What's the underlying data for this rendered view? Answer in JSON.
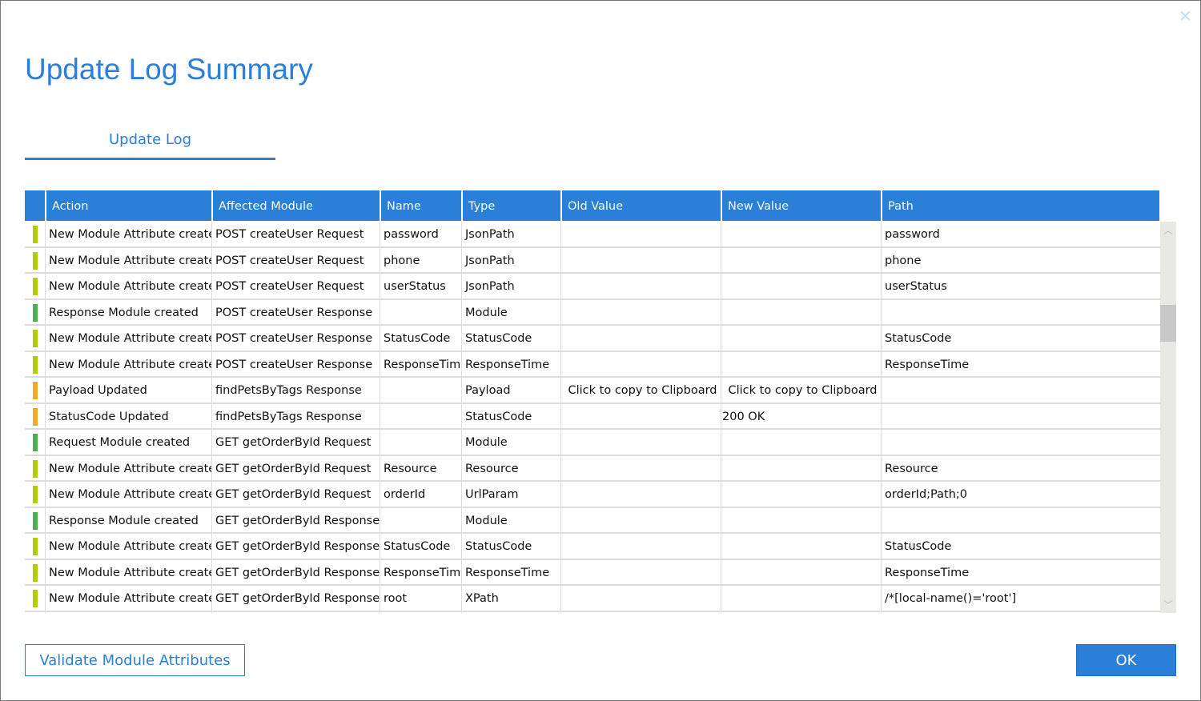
{
  "title": "Update Log Summary",
  "tab": "Update Log",
  "close_icon": "close-icon",
  "colors": {
    "accent": "#2a7fd9",
    "attribute": "#b5cc00",
    "module": "#4caf50",
    "updated": "#f5a623"
  },
  "columns": [
    "Action",
    "Affected Module",
    "Name",
    "Type",
    "Old Value",
    "New Value",
    "Path"
  ],
  "rows": [
    {
      "status": "attribute",
      "action": "New Module Attribute created",
      "module": "POST createUser Request",
      "name": "password",
      "type": "JsonPath",
      "old": "",
      "new": "",
      "path": "password"
    },
    {
      "status": "attribute",
      "action": "New Module Attribute created",
      "module": "POST createUser Request",
      "name": "phone",
      "type": "JsonPath",
      "old": "",
      "new": "",
      "path": "phone"
    },
    {
      "status": "attribute",
      "action": "New Module Attribute created",
      "module": "POST createUser Request",
      "name": "userStatus",
      "type": "JsonPath",
      "old": "",
      "new": "",
      "path": "userStatus"
    },
    {
      "status": "module",
      "action": "Response Module created",
      "module": "POST createUser Response",
      "name": "",
      "type": "Module",
      "old": "",
      "new": "",
      "path": ""
    },
    {
      "status": "attribute",
      "action": "New Module Attribute created",
      "module": "POST createUser Response",
      "name": "StatusCode",
      "type": "StatusCode",
      "old": "",
      "new": "",
      "path": "StatusCode"
    },
    {
      "status": "attribute",
      "action": "New Module Attribute created",
      "module": "POST createUser Response",
      "name": "ResponseTime",
      "type": "ResponseTime",
      "old": "",
      "new": "",
      "path": "ResponseTime"
    },
    {
      "status": "updated",
      "action": "Payload Updated",
      "module": "findPetsByTags Response",
      "name": "",
      "type": "Payload",
      "old": "Click to copy to Clipboard",
      "new": "Click to copy to Clipboard",
      "path": ""
    },
    {
      "status": "updated",
      "action": "StatusCode Updated",
      "module": "findPetsByTags Response",
      "name": "",
      "type": "StatusCode",
      "old": "",
      "new": "200 OK",
      "path": ""
    },
    {
      "status": "module",
      "action": "Request Module created",
      "module": "GET getOrderById Request",
      "name": "",
      "type": "Module",
      "old": "",
      "new": "",
      "path": ""
    },
    {
      "status": "attribute",
      "action": "New Module Attribute created",
      "module": "GET getOrderById Request",
      "name": "Resource",
      "type": "Resource",
      "old": "",
      "new": "",
      "path": "Resource"
    },
    {
      "status": "attribute",
      "action": "New Module Attribute created",
      "module": "GET getOrderById Request",
      "name": "orderId",
      "type": "UrlParam",
      "old": "",
      "new": "",
      "path": "orderId;Path;0"
    },
    {
      "status": "module",
      "action": "Response Module created",
      "module": "GET getOrderById Response",
      "name": "",
      "type": "Module",
      "old": "",
      "new": "",
      "path": ""
    },
    {
      "status": "attribute",
      "action": "New Module Attribute created",
      "module": "GET getOrderById Response",
      "name": "StatusCode",
      "type": "StatusCode",
      "old": "",
      "new": "",
      "path": "StatusCode"
    },
    {
      "status": "attribute",
      "action": "New Module Attribute created",
      "module": "GET getOrderById Response",
      "name": "ResponseTime",
      "type": "ResponseTime",
      "old": "",
      "new": "",
      "path": "ResponseTime"
    },
    {
      "status": "attribute",
      "action": "New Module Attribute created",
      "module": "GET getOrderById Response",
      "name": "root",
      "type": "XPath",
      "old": "",
      "new": "",
      "path": "/*[local-name()='root']"
    },
    {
      "status": "attribute",
      "action": "",
      "module": "",
      "name": "",
      "type": "",
      "old": "",
      "new": "",
      "path": ""
    }
  ],
  "buttons": {
    "validate": "Validate Module Attributes",
    "ok": "OK"
  }
}
